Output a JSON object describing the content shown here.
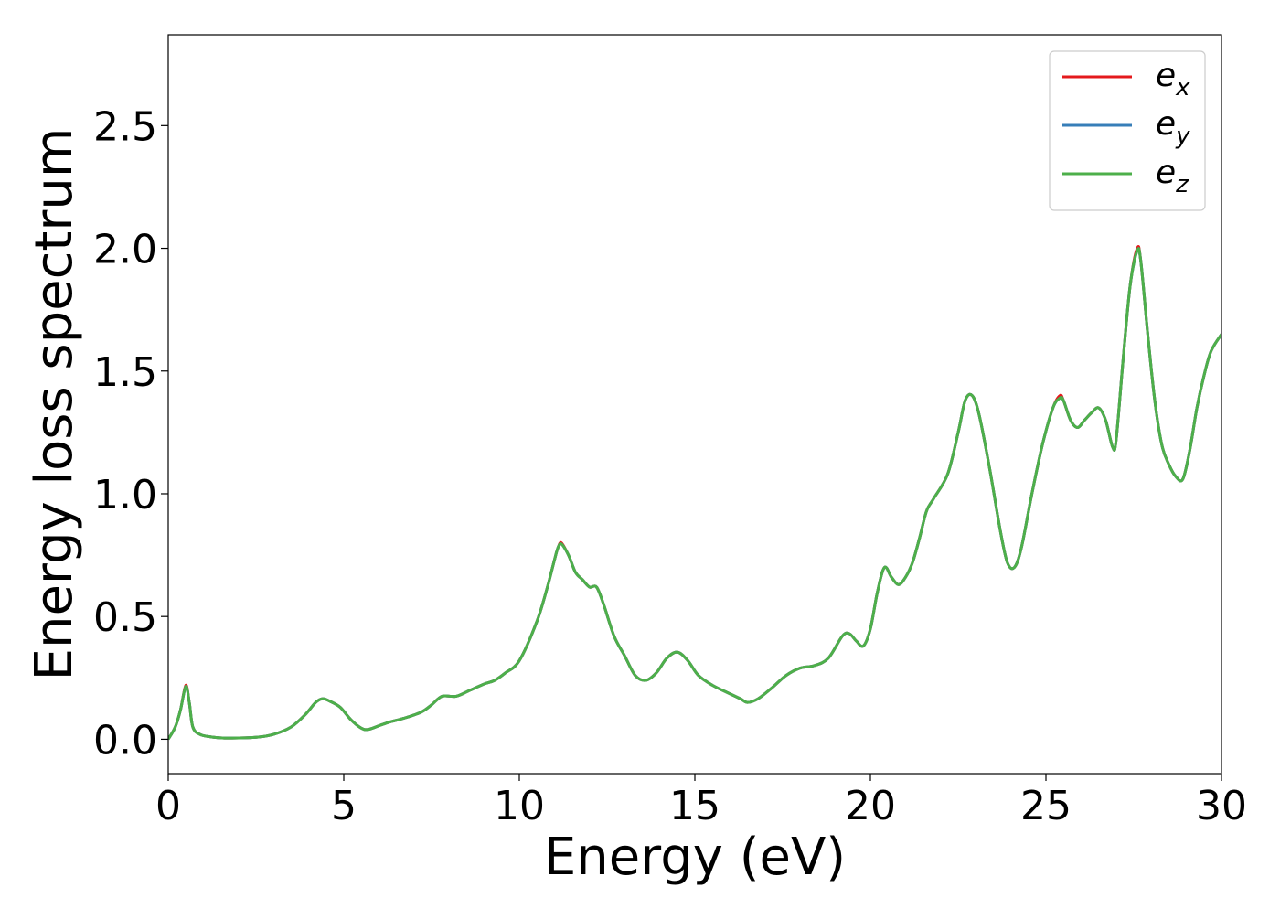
{
  "chart_data": {
    "type": "line",
    "xlabel": "Energy (eV)",
    "ylabel": "Energy loss spectrum",
    "xlim": [
      0,
      30
    ],
    "ylim": [
      -0.14,
      2.87
    ],
    "xticks": [
      0,
      5,
      10,
      15,
      20,
      25,
      30
    ],
    "xtick_labels": [
      "0",
      "5",
      "10",
      "15",
      "20",
      "25",
      "30"
    ],
    "yticks": [
      0.0,
      0.5,
      1.0,
      1.5,
      2.0,
      2.5
    ],
    "ytick_labels": [
      "0.0",
      "0.5",
      "1.0",
      "1.5",
      "2.0",
      "2.5"
    ],
    "grid": false,
    "legend_position": "top-right",
    "series": [
      {
        "name": "e_x",
        "legend_base": "e",
        "legend_sub": "x",
        "color": "#e41a1c",
        "x": [
          0,
          0.2,
          0.35,
          0.5,
          0.6,
          0.7,
          0.9,
          1.2,
          1.6,
          2.5,
          3.0,
          3.5,
          3.9,
          4.2,
          4.4,
          4.6,
          4.9,
          5.2,
          5.5,
          5.7,
          6.0,
          6.3,
          6.7,
          7.2,
          7.5,
          7.8,
          8.2,
          8.6,
          9.0,
          9.3,
          9.6,
          10.0,
          10.5,
          10.8,
          11.0,
          11.1,
          11.2,
          11.4,
          11.6,
          11.8,
          12.0,
          12.2,
          12.4,
          12.7,
          13.0,
          13.3,
          13.6,
          13.9,
          14.2,
          14.5,
          14.8,
          15.1,
          15.5,
          16.0,
          16.3,
          16.5,
          16.8,
          17.2,
          17.6,
          18.0,
          18.4,
          18.8,
          19.2,
          19.4,
          19.6,
          19.8,
          20.0,
          20.2,
          20.4,
          20.6,
          20.8,
          21.0,
          21.2,
          21.4,
          21.6,
          21.8,
          22.2,
          22.5,
          22.7,
          22.9,
          23.1,
          23.4,
          23.7,
          23.9,
          24.1,
          24.3,
          24.6,
          24.9,
          25.2,
          25.4,
          25.5,
          25.7,
          25.9,
          26.1,
          26.3,
          26.5,
          26.7,
          26.9,
          27.0,
          27.2,
          27.4,
          27.6,
          27.7,
          27.9,
          28.1,
          28.3,
          28.5,
          28.7,
          28.9,
          29.1,
          29.3,
          29.5,
          29.7,
          30.0
        ],
        "y": [
          0.0,
          0.05,
          0.12,
          0.22,
          0.15,
          0.05,
          0.02,
          0.01,
          0.005,
          0.008,
          0.02,
          0.05,
          0.1,
          0.15,
          0.165,
          0.155,
          0.13,
          0.08,
          0.045,
          0.04,
          0.055,
          0.07,
          0.085,
          0.11,
          0.14,
          0.175,
          0.175,
          0.2,
          0.225,
          0.24,
          0.27,
          0.32,
          0.48,
          0.62,
          0.73,
          0.78,
          0.8,
          0.75,
          0.68,
          0.65,
          0.62,
          0.62,
          0.55,
          0.42,
          0.34,
          0.26,
          0.24,
          0.27,
          0.33,
          0.355,
          0.32,
          0.26,
          0.22,
          0.185,
          0.165,
          0.15,
          0.165,
          0.21,
          0.26,
          0.29,
          0.3,
          0.33,
          0.42,
          0.43,
          0.4,
          0.38,
          0.45,
          0.6,
          0.7,
          0.66,
          0.63,
          0.66,
          0.72,
          0.82,
          0.93,
          0.98,
          1.08,
          1.25,
          1.38,
          1.4,
          1.32,
          1.1,
          0.85,
          0.72,
          0.7,
          0.78,
          1.0,
          1.2,
          1.35,
          1.4,
          1.38,
          1.3,
          1.27,
          1.3,
          1.33,
          1.35,
          1.3,
          1.19,
          1.22,
          1.55,
          1.85,
          2.0,
          1.95,
          1.65,
          1.38,
          1.2,
          1.12,
          1.07,
          1.06,
          1.18,
          1.35,
          1.48,
          1.58,
          1.65
        ]
      },
      {
        "name": "e_y",
        "legend_base": "e",
        "legend_sub": "y",
        "color": "#377eb8",
        "x": [
          0,
          0.2,
          0.35,
          0.5,
          0.6,
          0.7,
          0.9,
          1.2,
          1.6,
          2.5,
          3.0,
          3.5,
          3.9,
          4.2,
          4.4,
          4.6,
          4.9,
          5.2,
          5.5,
          5.7,
          6.0,
          6.3,
          6.7,
          7.2,
          7.5,
          7.8,
          8.2,
          8.6,
          9.0,
          9.3,
          9.6,
          10.0,
          10.5,
          10.8,
          11.0,
          11.1,
          11.2,
          11.4,
          11.6,
          11.8,
          12.0,
          12.2,
          12.4,
          12.7,
          13.0,
          13.3,
          13.6,
          13.9,
          14.2,
          14.5,
          14.8,
          15.1,
          15.5,
          16.0,
          16.3,
          16.5,
          16.8,
          17.2,
          17.6,
          18.0,
          18.4,
          18.8,
          19.2,
          19.4,
          19.6,
          19.8,
          20.0,
          20.2,
          20.4,
          20.6,
          20.8,
          21.0,
          21.2,
          21.4,
          21.6,
          21.8,
          22.2,
          22.5,
          22.7,
          22.9,
          23.1,
          23.4,
          23.7,
          23.9,
          24.1,
          24.3,
          24.6,
          24.9,
          25.2,
          25.4,
          25.5,
          25.7,
          25.9,
          26.1,
          26.3,
          26.5,
          26.7,
          26.9,
          27.0,
          27.2,
          27.4,
          27.6,
          27.7,
          27.9,
          28.1,
          28.3,
          28.5,
          28.7,
          28.9,
          29.1,
          29.3,
          29.5,
          29.7,
          30.0
        ],
        "y": [
          0.0,
          0.05,
          0.12,
          0.215,
          0.15,
          0.05,
          0.02,
          0.01,
          0.005,
          0.008,
          0.02,
          0.05,
          0.1,
          0.15,
          0.165,
          0.155,
          0.13,
          0.08,
          0.045,
          0.04,
          0.055,
          0.07,
          0.085,
          0.11,
          0.14,
          0.175,
          0.175,
          0.2,
          0.225,
          0.24,
          0.27,
          0.32,
          0.48,
          0.62,
          0.73,
          0.78,
          0.795,
          0.75,
          0.68,
          0.65,
          0.62,
          0.62,
          0.55,
          0.42,
          0.34,
          0.26,
          0.24,
          0.27,
          0.33,
          0.355,
          0.32,
          0.26,
          0.22,
          0.185,
          0.165,
          0.15,
          0.165,
          0.21,
          0.26,
          0.29,
          0.3,
          0.33,
          0.42,
          0.43,
          0.4,
          0.38,
          0.45,
          0.6,
          0.7,
          0.66,
          0.63,
          0.66,
          0.72,
          0.82,
          0.93,
          0.98,
          1.08,
          1.25,
          1.38,
          1.4,
          1.32,
          1.1,
          0.85,
          0.72,
          0.7,
          0.78,
          1.0,
          1.2,
          1.35,
          1.39,
          1.38,
          1.3,
          1.27,
          1.3,
          1.33,
          1.35,
          1.3,
          1.19,
          1.22,
          1.55,
          1.85,
          1.99,
          1.95,
          1.65,
          1.38,
          1.2,
          1.12,
          1.07,
          1.06,
          1.18,
          1.35,
          1.48,
          1.58,
          1.65
        ]
      },
      {
        "name": "e_z",
        "legend_base": "e",
        "legend_sub": "z",
        "color": "#4daf4a",
        "x": [
          0,
          0.2,
          0.35,
          0.5,
          0.6,
          0.7,
          0.9,
          1.2,
          1.6,
          2.5,
          3.0,
          3.5,
          3.9,
          4.2,
          4.4,
          4.6,
          4.9,
          5.2,
          5.5,
          5.7,
          6.0,
          6.3,
          6.7,
          7.2,
          7.5,
          7.8,
          8.2,
          8.6,
          9.0,
          9.3,
          9.6,
          10.0,
          10.5,
          10.8,
          11.0,
          11.1,
          11.2,
          11.4,
          11.6,
          11.8,
          12.0,
          12.2,
          12.4,
          12.7,
          13.0,
          13.3,
          13.6,
          13.9,
          14.2,
          14.5,
          14.8,
          15.1,
          15.5,
          16.0,
          16.3,
          16.5,
          16.8,
          17.2,
          17.6,
          18.0,
          18.4,
          18.8,
          19.2,
          19.4,
          19.6,
          19.8,
          20.0,
          20.2,
          20.4,
          20.6,
          20.8,
          21.0,
          21.2,
          21.4,
          21.6,
          21.8,
          22.2,
          22.5,
          22.7,
          22.9,
          23.1,
          23.4,
          23.7,
          23.9,
          24.1,
          24.3,
          24.6,
          24.9,
          25.2,
          25.4,
          25.5,
          25.7,
          25.9,
          26.1,
          26.3,
          26.5,
          26.7,
          26.9,
          27.0,
          27.2,
          27.4,
          27.6,
          27.7,
          27.9,
          28.1,
          28.3,
          28.5,
          28.7,
          28.9,
          29.1,
          29.3,
          29.5,
          29.7,
          30.0
        ],
        "y": [
          0.0,
          0.05,
          0.12,
          0.215,
          0.15,
          0.05,
          0.02,
          0.01,
          0.005,
          0.008,
          0.02,
          0.05,
          0.1,
          0.15,
          0.165,
          0.155,
          0.13,
          0.08,
          0.045,
          0.04,
          0.055,
          0.07,
          0.085,
          0.11,
          0.14,
          0.175,
          0.175,
          0.2,
          0.225,
          0.24,
          0.27,
          0.32,
          0.48,
          0.62,
          0.73,
          0.78,
          0.795,
          0.75,
          0.68,
          0.65,
          0.62,
          0.62,
          0.55,
          0.42,
          0.34,
          0.26,
          0.24,
          0.27,
          0.33,
          0.355,
          0.32,
          0.26,
          0.22,
          0.185,
          0.165,
          0.15,
          0.165,
          0.21,
          0.26,
          0.29,
          0.3,
          0.33,
          0.42,
          0.43,
          0.4,
          0.38,
          0.45,
          0.6,
          0.7,
          0.66,
          0.63,
          0.66,
          0.72,
          0.82,
          0.93,
          0.98,
          1.08,
          1.25,
          1.38,
          1.4,
          1.32,
          1.1,
          0.85,
          0.72,
          0.7,
          0.78,
          1.0,
          1.2,
          1.35,
          1.39,
          1.38,
          1.3,
          1.27,
          1.3,
          1.33,
          1.35,
          1.3,
          1.19,
          1.22,
          1.55,
          1.85,
          1.99,
          1.95,
          1.65,
          1.38,
          1.2,
          1.12,
          1.07,
          1.06,
          1.18,
          1.35,
          1.48,
          1.58,
          1.65
        ]
      }
    ]
  }
}
